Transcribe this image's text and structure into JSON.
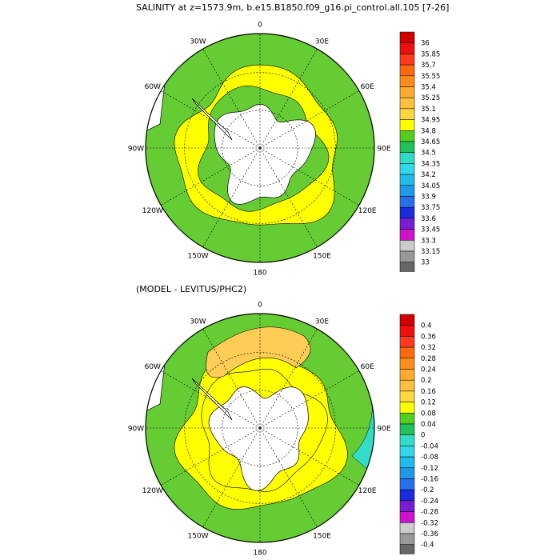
{
  "panels": [
    {
      "title": "SALINITY at z=1573.9m, b.e15.B1850.f09_g16.pi_control.all.105 [7-26]",
      "meridian_labels": [
        "0",
        "30E",
        "60E",
        "90E",
        "120E",
        "150E",
        "180",
        "150W",
        "120W",
        "90W",
        "60W",
        "30W"
      ],
      "colorbar": {
        "labels": [
          "36",
          "35.85",
          "35.7",
          "35.55",
          "35.4",
          "35.25",
          "35.1",
          "34.95",
          "34.8",
          "34.65",
          "34.5",
          "34.35",
          "34.2",
          "34.05",
          "33.9",
          "33.75",
          "33.6",
          "33.45",
          "33.3",
          "33.15",
          "33"
        ],
        "colors": [
          "#d10000",
          "#ee1010",
          "#ff3a20",
          "#ff6a10",
          "#ff8c1c",
          "#ffaa30",
          "#ffc040",
          "#ffd840",
          "#ffff00",
          "#55cc22",
          "#22c05a",
          "#33dcc8",
          "#33d8e8",
          "#22bcec",
          "#2298e8",
          "#2670ee",
          "#1a2cdc",
          "#7a1ed6",
          "#cc14cc",
          "#cccccc",
          "#999999",
          "#666666"
        ]
      },
      "map_colors": {
        "outer": "#66cc33",
        "mid": "#ffff00",
        "inner": "#66cc33",
        "orange": "#ffd040"
      }
    },
    {
      "title": "(MODEL - LEVITUS/PHC2)",
      "meridian_labels": [
        "0",
        "30E",
        "60E",
        "90E",
        "120E",
        "150E",
        "180",
        "150W",
        "120W",
        "90W",
        "60W",
        "30W"
      ],
      "colorbar": {
        "labels": [
          "0.4",
          "0.36",
          "0.32",
          "0.28",
          "0.24",
          "0.2",
          "0.16",
          "0.12",
          "0.08",
          "0.04",
          "0",
          "-0.04",
          "-0.08",
          "-0.12",
          "-0.16",
          "-0.2",
          "-0.24",
          "-0.28",
          "-0.32",
          "-0.36",
          "-0.4"
        ],
        "colors": [
          "#d10000",
          "#ee1010",
          "#ff3a20",
          "#ff6a10",
          "#ff8c1c",
          "#ffaa30",
          "#ffc040",
          "#ffd840",
          "#ffff00",
          "#55cc22",
          "#22c05a",
          "#33dcc8",
          "#33d8e8",
          "#22bcec",
          "#2298e8",
          "#2670ee",
          "#1a2cdc",
          "#7a1ed6",
          "#cc14cc",
          "#cccccc",
          "#999999",
          "#666666"
        ]
      },
      "map_colors": {
        "outer": "#66cc33",
        "mid": "#ffff00",
        "inner": "#ffff00",
        "orange": "#ffcc55"
      }
    }
  ]
}
